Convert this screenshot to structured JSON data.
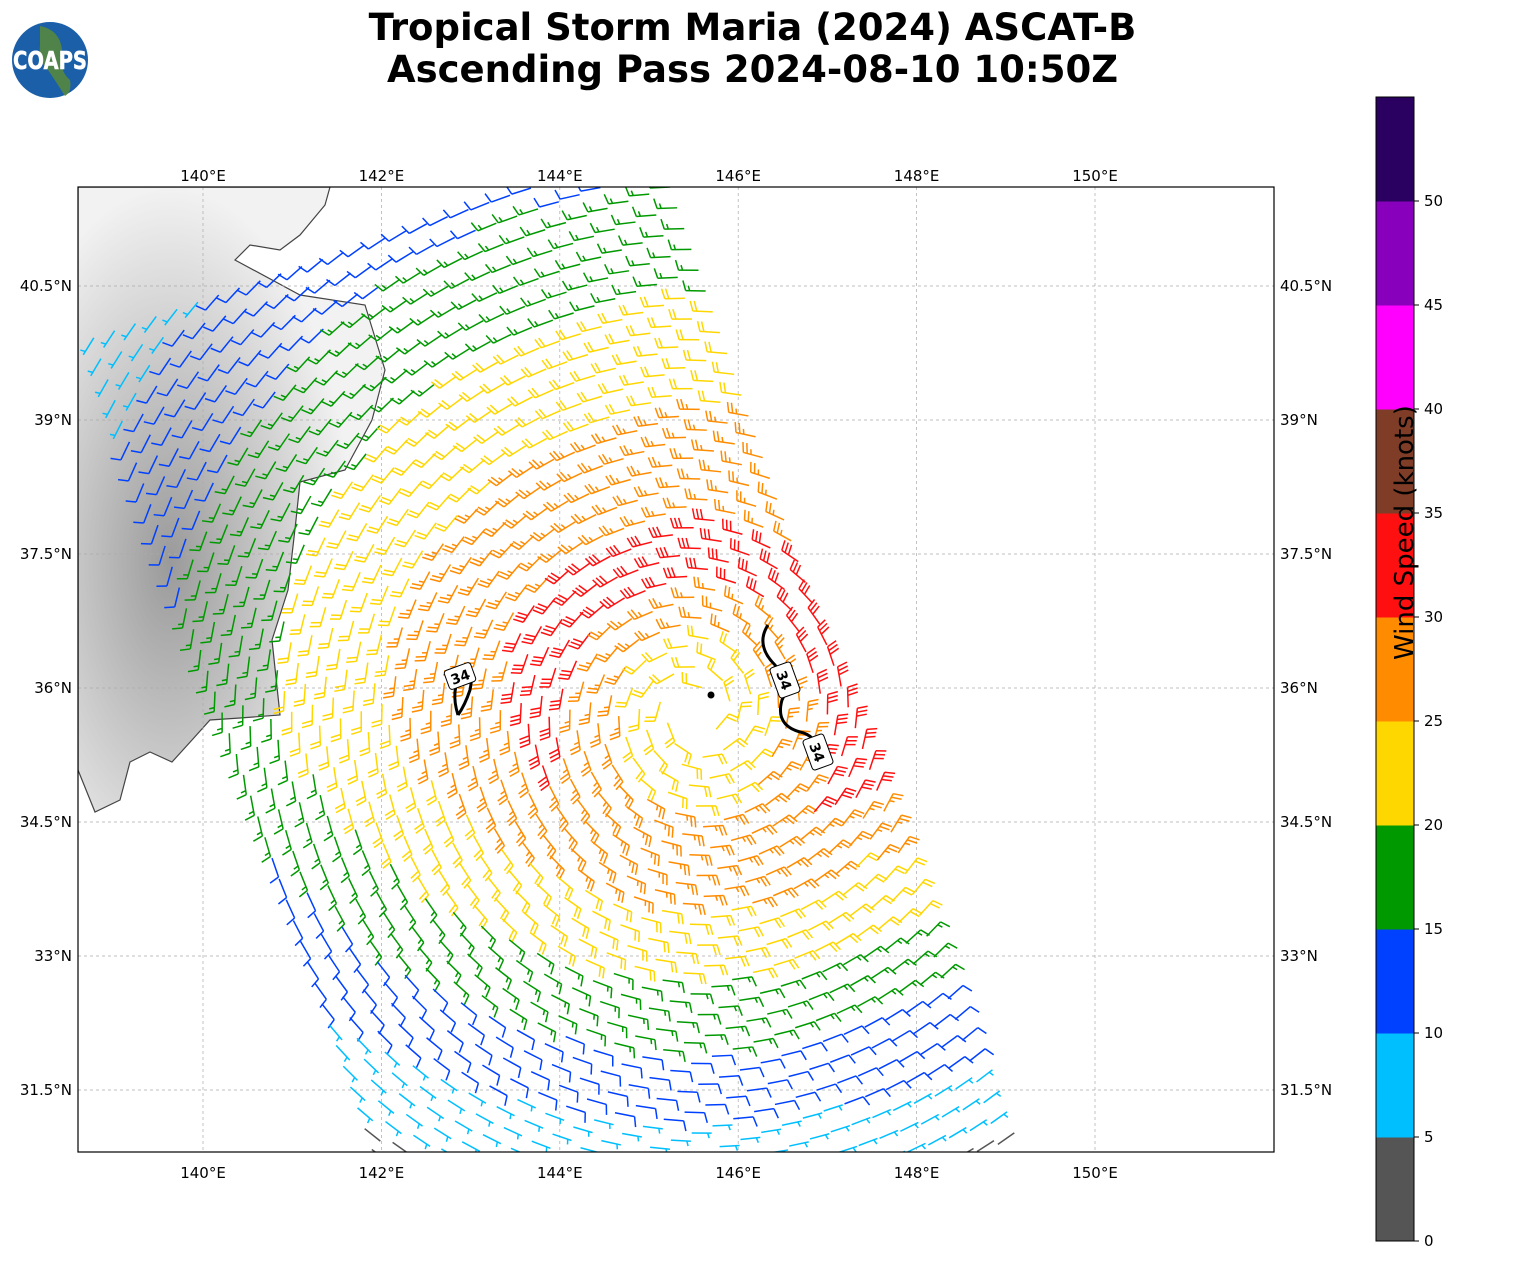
{
  "title_line1": "Tropical Storm Maria (2024) ASCAT-B",
  "title_line2": "Ascending Pass 2024-08-10 10:50Z",
  "logo_text": "COAPS",
  "chart_data": {
    "type": "map",
    "lon_ticks": [
      "140°E",
      "142°E",
      "144°E",
      "146°E",
      "148°E",
      "150°E"
    ],
    "lon_values": [
      140,
      142,
      144,
      146,
      148,
      150
    ],
    "lat_ticks": [
      "40.5°N",
      "39°N",
      "37.5°N",
      "36°N",
      "34.5°N",
      "33°N",
      "31.5°N"
    ],
    "lat_values": [
      40.5,
      39,
      37.5,
      36,
      34.5,
      33,
      31.5
    ],
    "grid": true,
    "storm_center": {
      "lon": 145.6,
      "lat": 35.9
    },
    "contour_label": "34",
    "colorbar": {
      "label": "Wind Speed (knots)",
      "ticks": [
        "0",
        "5",
        "10",
        "15",
        "20",
        "25",
        "30",
        "35",
        "40",
        "45",
        "50"
      ],
      "bounds": [
        0,
        5,
        10,
        15,
        20,
        25,
        30,
        35,
        40,
        45,
        50,
        55
      ],
      "colors": [
        "#555555",
        "#00bfff",
        "#0040ff",
        "#009900",
        "#ffd700",
        "#ff8c00",
        "#ff1010",
        "#7f3d28",
        "#ff00ff",
        "#8800bb",
        "#2a0060"
      ]
    }
  }
}
